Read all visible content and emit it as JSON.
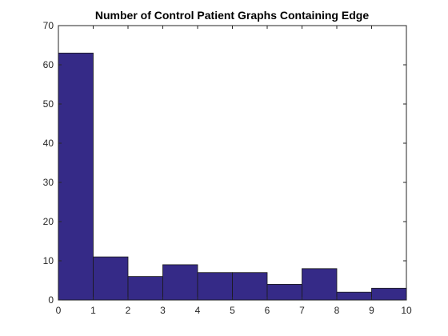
{
  "chart_data": {
    "type": "bar",
    "title": "Number of Control Patient Graphs Containing Edge",
    "xlabel": "",
    "ylabel": "",
    "xlim": [
      0,
      10
    ],
    "ylim": [
      0,
      70
    ],
    "x_ticks": [
      "0",
      "1",
      "2",
      "3",
      "4",
      "5",
      "6",
      "7",
      "8",
      "9",
      "10"
    ],
    "y_ticks": [
      "0",
      "10",
      "20",
      "30",
      "40",
      "50",
      "60",
      "70"
    ],
    "bin_edges": [
      0,
      1,
      2,
      3,
      4,
      5,
      6,
      7,
      8,
      9,
      10
    ],
    "values": [
      63,
      11,
      6,
      9,
      7,
      7,
      4,
      8,
      2,
      3
    ],
    "bar_color": "#352a87",
    "grid": false,
    "legend": false
  }
}
